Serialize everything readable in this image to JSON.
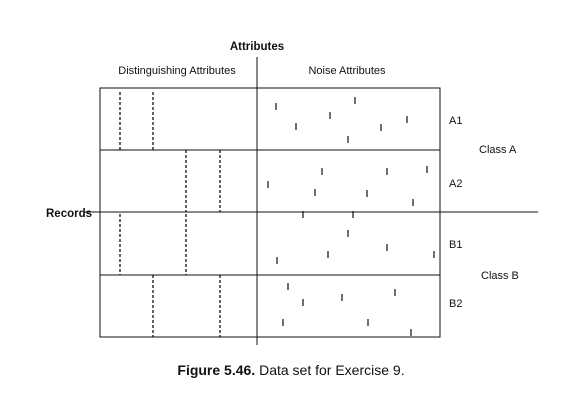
{
  "diagram": {
    "header": {
      "attributes": "Attributes",
      "distinguishing": "Distinguishing Attributes",
      "noise": "Noise Attributes"
    },
    "records_label": "Records",
    "rows": [
      {
        "label": "A1"
      },
      {
        "label": "A2"
      },
      {
        "label": "B1"
      },
      {
        "label": "B2"
      }
    ],
    "classes": [
      {
        "label": "Class A"
      },
      {
        "label": "Class B"
      }
    ],
    "line_color": "#111111"
  },
  "caption": {
    "label": "Figure 5.46.",
    "text": "Data set for Exercise 9."
  }
}
